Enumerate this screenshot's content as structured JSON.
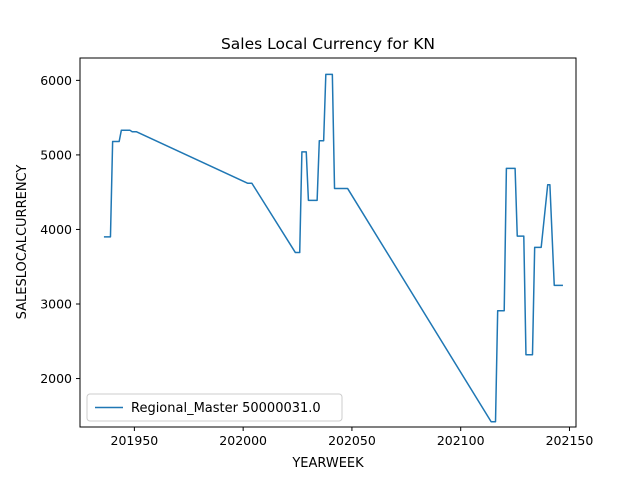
{
  "chart_data": {
    "type": "line",
    "title": "Sales Local Currency for KN",
    "xlabel": "YEARWEEK",
    "ylabel": "SALESLOCALCURRENCY",
    "xlim": [
      201925,
      202153
    ],
    "ylim": [
      1350,
      6300
    ],
    "xticks": [
      201950,
      202000,
      202050,
      202100,
      202150
    ],
    "yticks": [
      2000,
      3000,
      4000,
      5000,
      6000
    ],
    "grid": false,
    "legend_position": "lower-left",
    "colors": {
      "series": "#1f77b4",
      "axes": "#000000",
      "background": "#ffffff"
    },
    "series": [
      {
        "name": "Regional_Master 50000031.0",
        "x": [
          201936,
          201939,
          201940,
          201943,
          201944,
          201948,
          201949,
          201951,
          202002,
          202004,
          202024,
          202026,
          202027,
          202029,
          202030,
          202034,
          202035,
          202037,
          202038,
          202041,
          202042,
          202044,
          202045,
          202047,
          202048,
          202114,
          202116,
          202117,
          202120,
          202121,
          202125,
          202126,
          202129,
          202130,
          202133,
          202134,
          202136,
          202137,
          202140,
          202141,
          202143,
          202144,
          202147
        ],
        "values": [
          3900,
          3900,
          5180,
          5180,
          5330,
          5330,
          5310,
          5310,
          4620,
          4620,
          3690,
          3690,
          5040,
          5040,
          4390,
          4390,
          5190,
          5190,
          6080,
          6080,
          4550,
          4550,
          4550,
          4550,
          4550,
          1420,
          1420,
          2910,
          2910,
          4820,
          4820,
          3910,
          3910,
          2320,
          2320,
          3760,
          3760,
          3760,
          4600,
          4600,
          3250,
          3250,
          3250
        ]
      }
    ]
  }
}
